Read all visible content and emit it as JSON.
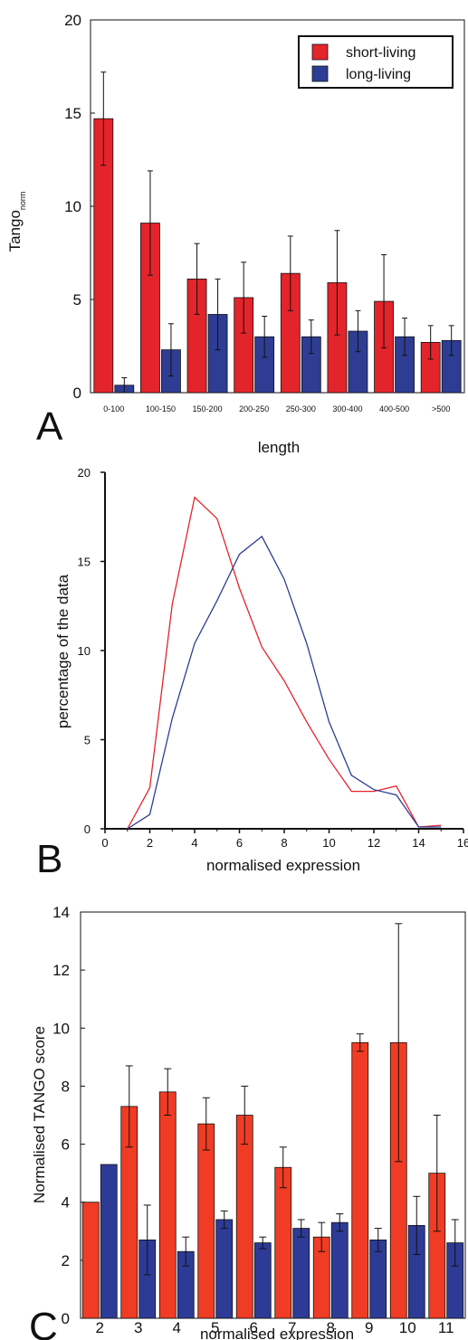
{
  "panels": {
    "a": "A",
    "b": "B",
    "c": "C"
  },
  "colors": {
    "short": "#e3242b",
    "long": "#2e3d93",
    "red_c": "#f03c24",
    "blue_c": "#2d3b96"
  },
  "chart_data": [
    {
      "id": "A",
      "type": "bar",
      "title": "",
      "xlabel": "length",
      "ylabel": "Tango",
      "ylabel_sub": "norm",
      "ylim": [
        0,
        20
      ],
      "yticks": [
        "0",
        "5",
        "10",
        "15",
        "20"
      ],
      "categories": [
        "0-100",
        "100-150",
        "150-200",
        "200-250",
        "250-300",
        "300-400",
        "400-500",
        ">500"
      ],
      "legend_position": "top-right",
      "series": [
        {
          "name": "short-living",
          "values": [
            14.7,
            9.1,
            6.1,
            5.1,
            6.4,
            5.9,
            4.9,
            2.7
          ],
          "errors": [
            2.5,
            2.8,
            1.9,
            1.9,
            2.0,
            2.8,
            2.5,
            0.9
          ]
        },
        {
          "name": "long-living",
          "values": [
            0.4,
            2.3,
            4.2,
            3.0,
            3.0,
            3.3,
            3.0,
            2.8
          ],
          "errors": [
            0.4,
            1.4,
            1.9,
            1.1,
            0.9,
            1.1,
            1.0,
            0.8
          ]
        }
      ]
    },
    {
      "id": "B",
      "type": "line",
      "title": "",
      "xlabel": "normalised expression",
      "ylabel": "percentage of the data",
      "xlim": [
        0,
        16
      ],
      "ylim": [
        0,
        20
      ],
      "xticks": [
        "0",
        "2",
        "4",
        "6",
        "8",
        "10",
        "12",
        "14",
        "16"
      ],
      "yticks": [
        "0",
        "5",
        "10",
        "15",
        "20"
      ],
      "series": [
        {
          "color": "red",
          "x": [
            1,
            2,
            3,
            4,
            5,
            6,
            7,
            8,
            9,
            10,
            11,
            12,
            13,
            14,
            15
          ],
          "y": [
            0,
            2.3,
            12.6,
            18.6,
            17.4,
            13.5,
            10.2,
            8.3,
            6.0,
            3.9,
            2.1,
            2.1,
            2.4,
            0.1,
            0.2
          ]
        },
        {
          "color": "blue",
          "x": [
            1,
            2,
            3,
            4,
            5,
            6,
            7,
            8,
            9,
            10,
            11,
            12,
            13,
            14,
            15
          ],
          "y": [
            0,
            0.8,
            6.2,
            10.4,
            12.8,
            15.4,
            16.4,
            14.0,
            10.4,
            6.0,
            3.0,
            2.2,
            1.9,
            0.1,
            0.1
          ]
        }
      ]
    },
    {
      "id": "C",
      "type": "bar",
      "title": "",
      "xlabel": "normalised expression",
      "ylabel": "Normalised TANGO score",
      "ylim": [
        0,
        14
      ],
      "yticks": [
        "0",
        "2",
        "4",
        "6",
        "8",
        "10",
        "12",
        "14"
      ],
      "categories": [
        "2",
        "3",
        "4",
        "5",
        "6",
        "7",
        "8",
        "9",
        "10",
        "11"
      ],
      "series": [
        {
          "color": "red",
          "values": [
            4.0,
            7.3,
            7.8,
            6.7,
            7.0,
            5.2,
            2.8,
            9.5,
            9.5,
            5.0
          ],
          "errors": [
            0,
            1.4,
            0.8,
            0.9,
            1.0,
            0.7,
            0.5,
            0.3,
            4.1,
            2.0
          ]
        },
        {
          "color": "blue",
          "values": [
            5.3,
            2.7,
            2.3,
            3.4,
            2.6,
            3.1,
            3.3,
            2.7,
            3.2,
            2.6
          ],
          "errors": [
            0,
            1.2,
            0.5,
            0.3,
            0.2,
            0.3,
            0.3,
            0.4,
            1.0,
            0.8
          ]
        }
      ]
    }
  ]
}
